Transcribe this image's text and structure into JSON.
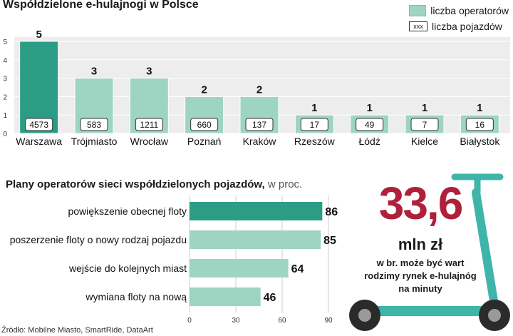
{
  "chart_data": [
    {
      "type": "bar",
      "title": "Współdzielone e-hulajnogi w Polsce",
      "categories": [
        "Warszawa",
        "Trójmiasto",
        "Wrocław",
        "Poznań",
        "Kraków",
        "Rzeszów",
        "Łódź",
        "Kielce",
        "Białystok"
      ],
      "series": [
        {
          "name": "liczba operatorów",
          "values": [
            5,
            3,
            3,
            2,
            2,
            1,
            1,
            1,
            1
          ]
        },
        {
          "name": "liczba pojazdów",
          "values": [
            4573,
            583,
            1211,
            660,
            137,
            17,
            49,
            7,
            16
          ]
        }
      ],
      "yticks": [
        0,
        1,
        2,
        3,
        4,
        5
      ],
      "ylim": [
        0,
        5
      ],
      "legend": {
        "placement": "top-right",
        "fill_label": "liczba operatorów",
        "box_label": "liczba pojazdów",
        "box_sample": "xxx"
      },
      "colors": {
        "highlight": "#2a9d84",
        "base": "#9ed4c2",
        "background": "#ededed"
      }
    },
    {
      "type": "bar",
      "orientation": "horizontal",
      "title": "Plany operatorów sieci współdzielonych pojazdów,",
      "unit": "w proc.",
      "categories": [
        "powiększenie obecnej floty",
        "poszerzenie floty o nowy rodzaj pojazdu",
        "wejście do kolejnych miast",
        "wymiana floty na nową"
      ],
      "values": [
        86,
        85,
        64,
        46
      ],
      "xticks": [
        0,
        30,
        60,
        90
      ],
      "xlim": [
        0,
        90
      ],
      "colors": {
        "highlight": "#2a9d84",
        "base": "#9ed4c2"
      }
    }
  ],
  "highlight": {
    "value": "33,6",
    "unit": "mln zł",
    "description": "w br. może być wart rodzimy rynek e-hulajnóg na minuty"
  },
  "source": "Źródło: Mobilne Miasto, SmartRide, DataArt",
  "colors": {
    "accent": "#b0203a",
    "scooter": "#3fb5a9"
  }
}
